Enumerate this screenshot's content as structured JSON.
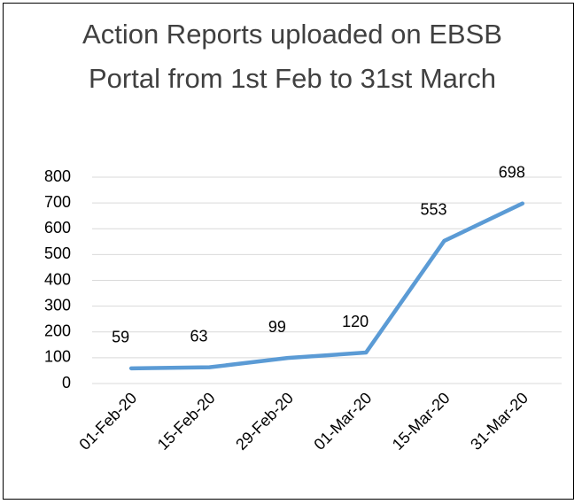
{
  "chart_data": {
    "type": "line",
    "title": "Action Reports uploaded on EBSB Portal from 1st Feb to 31st March",
    "categories": [
      "01-Feb-20",
      "15-Feb-20",
      "29-Feb-20",
      "01-Mar-20",
      "15-Mar-20",
      "31-Mar-20"
    ],
    "values": [
      59,
      63,
      99,
      120,
      553,
      698
    ],
    "color": "#5b9bd5",
    "ylim": [
      0,
      800
    ],
    "yticks": [
      0,
      100,
      200,
      300,
      400,
      500,
      600,
      700,
      800
    ],
    "grid": true
  }
}
